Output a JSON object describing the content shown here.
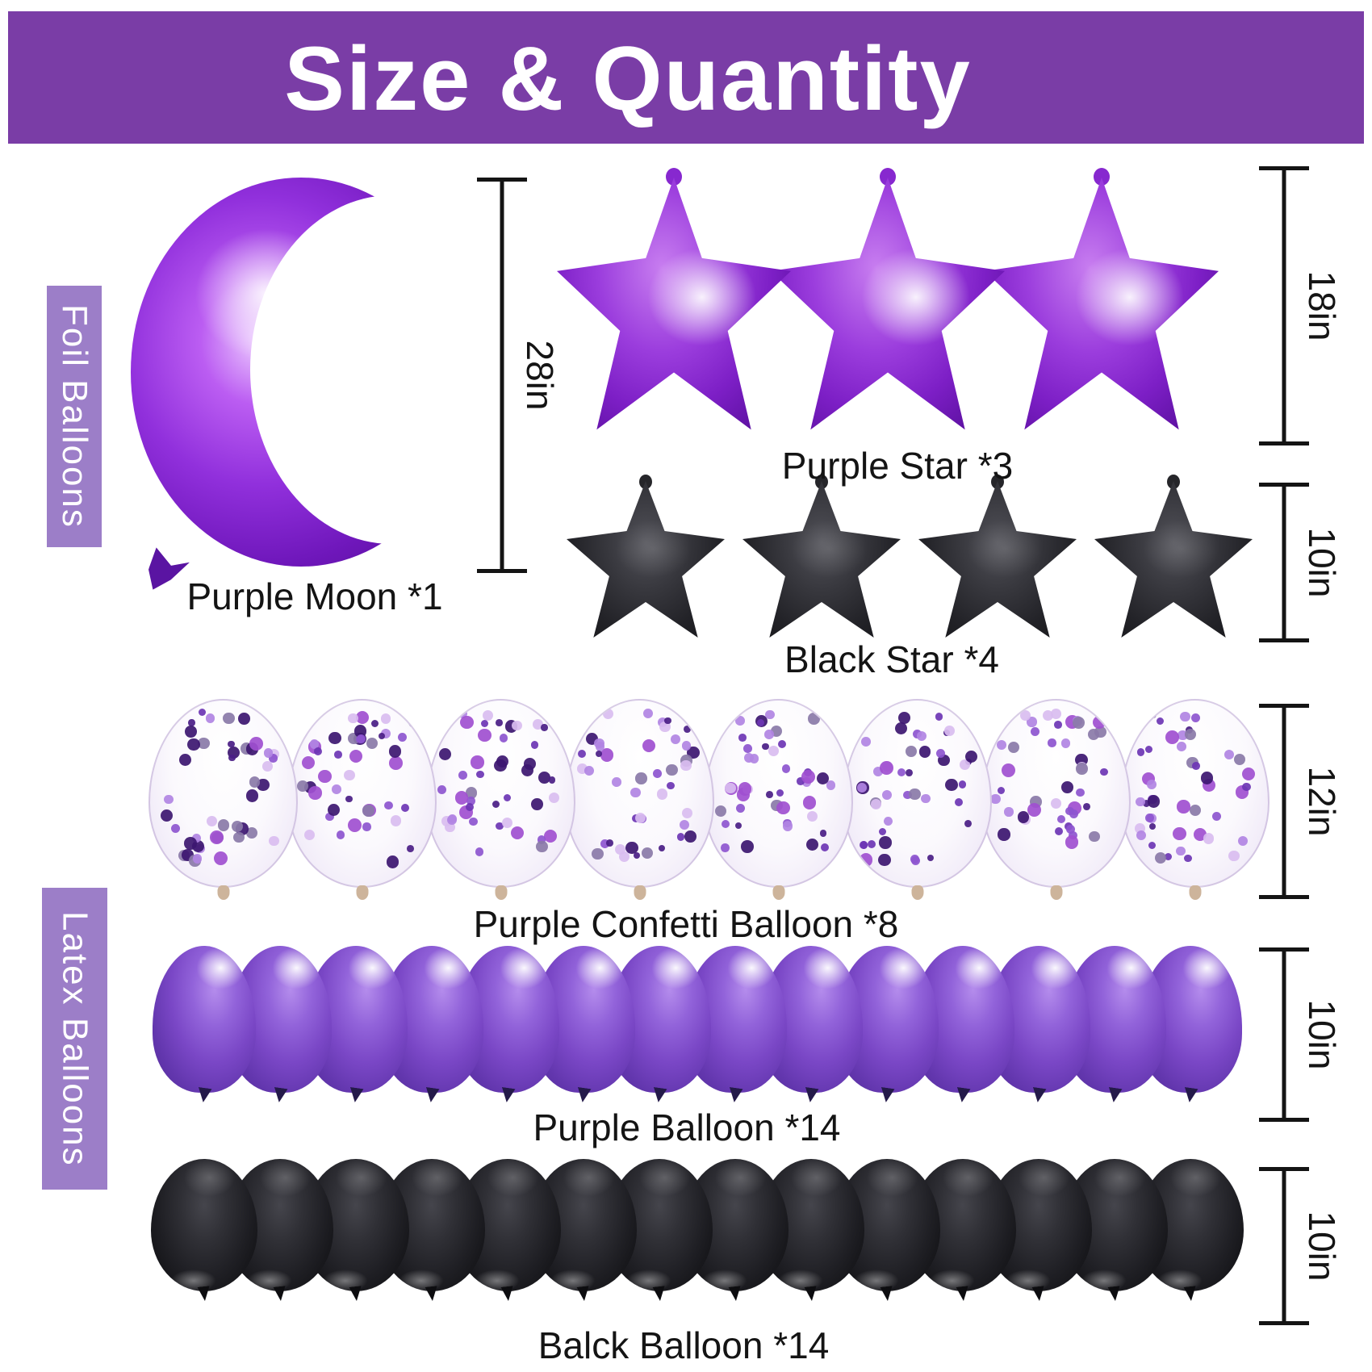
{
  "header": {
    "title": "Size & Quantity",
    "bg_color": "#7a3da6",
    "text_color": "#ffffff"
  },
  "section_labels": {
    "foil": "Foil Balloons",
    "latex": "Latex Balloons",
    "ribbon_color": "#9c7ec8"
  },
  "rows": {
    "moon": {
      "label": "Purple Moon *1",
      "size": "28in",
      "count": 1,
      "color_name": "purple foil moon"
    },
    "purpleStars": {
      "label": "Purple Star *3",
      "size": "18in",
      "count": 3,
      "color_name": "purple foil star"
    },
    "blackStars": {
      "label": "Black Star *4",
      "size": "10in",
      "count": 4,
      "color_name": "black foil star"
    },
    "confetti": {
      "label": "Purple Confetti Balloon *8",
      "size": "12in",
      "count": 8,
      "color_name": "clear latex with purple confetti"
    },
    "purpleLatex": {
      "label": "Purple Balloon *14",
      "size": "10in",
      "count": 14,
      "color_name": "purple latex"
    },
    "blackLatex": {
      "label": "Balck Balloon *14",
      "size": "10in",
      "count": 14,
      "color_name": "black latex"
    }
  },
  "colors": {
    "header_purple": "#7a3da6",
    "ribbon_purple": "#9c7ec8",
    "foil_purple": "#8325cf",
    "foil_black": "#232327",
    "latex_purple": "#7a47c6",
    "latex_black": "#1f1f24",
    "measure_line": "#141414"
  },
  "confetti_dot_colors": [
    "#4a1d86",
    "#6d35b4",
    "#8d55cf",
    "#b184e3",
    "#d9bdf0",
    "#8a79a8",
    "#3c1670",
    "#a04fd0"
  ]
}
